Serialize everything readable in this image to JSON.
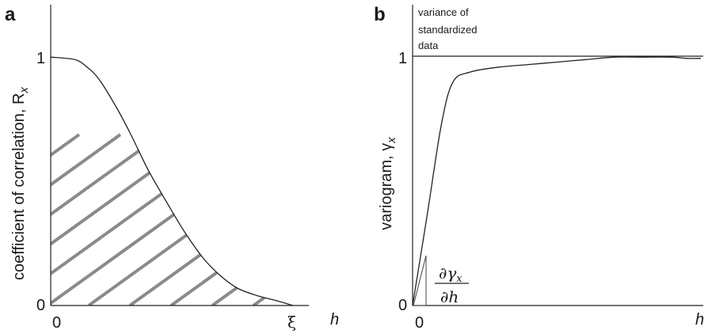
{
  "chart_data": [
    {
      "panel_label": "a",
      "type": "line",
      "ylabel": "coefficient of correlation, R",
      "ylabel_subscript": "x",
      "xlabel": "h",
      "x_ticks": [
        "0",
        "ξ"
      ],
      "y_ticks": [
        "0",
        "1"
      ],
      "hatched_area_under_curve": true,
      "series": [
        {
          "x": [
            0,
            0.1,
            0.15,
            0.2,
            0.27,
            0.33,
            0.4,
            0.47,
            0.55,
            0.63,
            0.7,
            0.77,
            0.85,
            0.93,
            1.0
          ],
          "values": [
            1.0,
            0.99,
            0.96,
            0.91,
            0.8,
            0.69,
            0.55,
            0.43,
            0.3,
            0.19,
            0.12,
            0.07,
            0.04,
            0.02,
            0.0
          ]
        }
      ],
      "xlim": [
        0,
        1.15
      ],
      "ylim": [
        0,
        1.16
      ]
    },
    {
      "panel_label": "b",
      "type": "line",
      "ylabel": "variogram, γ",
      "ylabel_subscript": "x",
      "xlabel": "h",
      "x_ticks": [
        "0"
      ],
      "y_ticks": [
        "0",
        "1"
      ],
      "reference_line": {
        "y": 1,
        "label_lines": [
          "variance of",
          "standardized",
          "data"
        ]
      },
      "slope_annotation": {
        "numerator": "∂γ",
        "numerator_subscript": "x",
        "denominator": "∂h"
      },
      "series": [
        {
          "x": [
            0,
            0.05,
            0.1,
            0.14,
            0.2,
            0.3,
            0.4,
            0.5,
            0.6,
            0.7,
            0.8,
            0.9,
            0.95,
            1.0
          ],
          "values": [
            0,
            0.36,
            0.73,
            0.9,
            0.94,
            0.96,
            0.97,
            0.98,
            0.99,
            1.0,
            1.0,
            1.0,
            0.995,
            0.995
          ]
        }
      ],
      "xlim": [
        0,
        1.0
      ],
      "ylim": [
        0,
        1.16
      ]
    }
  ]
}
